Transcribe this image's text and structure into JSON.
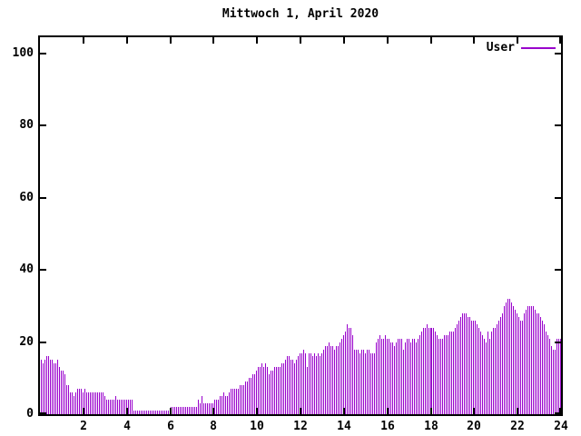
{
  "title": "Mittwoch 1, April 2020",
  "legend": {
    "label": "User"
  },
  "colors": {
    "accent": "#9900cc",
    "axis": "#000000",
    "background": "#ffffff"
  },
  "axes": {
    "y_ticks": [
      "0",
      "20",
      "40",
      "60",
      "80",
      "100"
    ],
    "y_tick_values": [
      0,
      20,
      40,
      60,
      80,
      100
    ],
    "x_ticks": [
      "2",
      "4",
      "6",
      "8",
      "10",
      "12",
      "14",
      "16",
      "18",
      "20",
      "22",
      "24"
    ],
    "x_tick_values": [
      2,
      4,
      6,
      8,
      10,
      12,
      14,
      16,
      18,
      20,
      22,
      24
    ]
  },
  "chart_data": {
    "type": "bar",
    "title": "Mittwoch 1, April 2020",
    "xlabel": "",
    "ylabel": "",
    "xlim": [
      0,
      24
    ],
    "ylim": [
      0,
      104.5
    ],
    "grid": false,
    "legend_position": "top-right-inside",
    "x_unit": "hour of day",
    "sample_interval_minutes": 5,
    "series": [
      {
        "name": "User",
        "color": "#9900cc",
        "values": [
          15,
          14,
          15,
          16,
          16,
          15,
          15,
          14,
          14,
          15,
          13,
          12,
          12,
          11,
          8,
          8,
          6,
          6,
          5,
          6,
          7,
          7,
          7,
          6,
          7,
          6,
          6,
          6,
          6,
          6,
          6,
          6,
          6,
          6,
          6,
          5,
          4,
          4,
          4,
          4,
          4,
          5,
          4,
          4,
          4,
          4,
          4,
          4,
          4,
          4,
          4,
          1,
          1,
          1,
          1,
          1,
          1,
          1,
          1,
          1,
          1,
          1,
          1,
          1,
          1,
          1,
          1,
          1,
          1,
          1,
          1,
          1,
          2,
          2,
          2,
          2,
          2,
          2,
          2,
          2,
          2,
          2,
          2,
          2,
          2,
          2,
          2,
          4,
          3,
          5,
          3,
          3,
          3,
          3,
          3,
          3,
          4,
          4,
          4,
          5,
          5,
          6,
          5,
          5,
          6,
          7,
          7,
          7,
          7,
          7,
          8,
          8,
          8,
          9,
          9,
          10,
          10,
          11,
          11,
          12,
          13,
          13,
          14,
          13,
          14,
          13,
          11,
          12,
          12,
          13,
          13,
          13,
          13,
          14,
          14,
          15,
          16,
          16,
          15,
          15,
          14,
          15,
          16,
          17,
          17,
          18,
          17,
          13,
          17,
          17,
          16,
          17,
          16,
          17,
          16,
          17,
          18,
          19,
          19,
          20,
          19,
          19,
          18,
          19,
          19,
          20,
          21,
          22,
          23,
          25,
          24,
          24,
          22,
          18,
          18,
          18,
          17,
          18,
          18,
          17,
          18,
          18,
          17,
          17,
          17,
          20,
          21,
          22,
          21,
          21,
          22,
          21,
          21,
          20,
          20,
          19,
          20,
          21,
          21,
          21,
          18,
          20,
          21,
          21,
          20,
          21,
          21,
          20,
          21,
          22,
          23,
          24,
          24,
          25,
          24,
          24,
          24,
          24,
          23,
          22,
          21,
          21,
          21,
          22,
          22,
          22,
          23,
          23,
          23,
          24,
          25,
          26,
          27,
          28,
          28,
          28,
          27,
          27,
          26,
          26,
          26,
          25,
          24,
          23,
          22,
          21,
          20,
          23,
          21,
          23,
          24,
          24,
          25,
          26,
          27,
          28,
          30,
          31,
          32,
          32,
          31,
          30,
          29,
          28,
          27,
          26,
          26,
          28,
          29,
          30,
          30,
          30,
          30,
          29,
          28,
          28,
          27,
          26,
          25,
          23,
          22,
          21,
          19,
          18,
          18,
          21,
          21,
          21
        ]
      }
    ]
  }
}
